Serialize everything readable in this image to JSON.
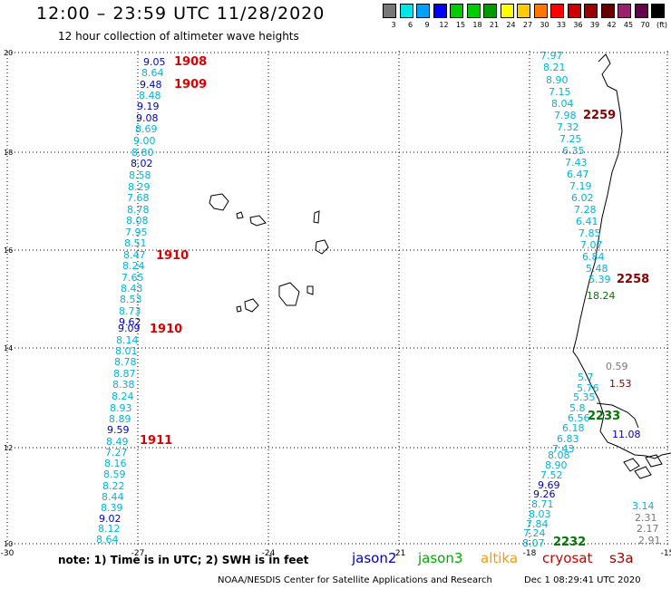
{
  "title": "12:00 – 23:59 UTC 11/28/2020",
  "subtitle": "12 hour collection of altimeter wave heights",
  "legend": {
    "colors": [
      "#777777",
      "#00e5e5",
      "#00a0ff",
      "#0000ff",
      "#00cc00",
      "#00cc00",
      "#009900",
      "#ffff00",
      "#ffcc00",
      "#ff7700",
      "#ff0000",
      "#cc0000",
      "#990000",
      "#660000",
      "#99226c",
      "#66004d",
      "#000000"
    ],
    "ticks": [
      "3",
      "6",
      "9",
      "12",
      "15",
      "18",
      "21",
      "24",
      "27",
      "30",
      "33",
      "36",
      "39",
      "42",
      "45",
      "70",
      "(ft)"
    ]
  },
  "axes": {
    "x_ticks": [
      "-30",
      "-27",
      "-24",
      "-21",
      "-18",
      "-15"
    ],
    "y_ticks": [
      "20",
      "18",
      "16",
      "14",
      "12",
      "10"
    ]
  },
  "track_colors": {
    "c": "#00b4dc",
    "b": "#0000cc",
    "g": "#007700",
    "a": "#777777",
    "m": "#880000",
    "r": "#dd0000"
  },
  "labels": [
    {
      "t": "9.05",
      "c": "b"
    },
    {
      "t": "8.64",
      "c": "c"
    },
    {
      "t": "9.48",
      "c": "b"
    },
    {
      "t": "8.48",
      "c": "c"
    },
    {
      "t": "9.19",
      "c": "b"
    },
    {
      "t": "9.08",
      "c": "b"
    },
    {
      "t": "8.69",
      "c": "c"
    },
    {
      "t": "9.00",
      "c": "c"
    },
    {
      "t": "8.80",
      "c": "c"
    },
    {
      "t": "8.02",
      "c": "b"
    },
    {
      "t": "8.58",
      "c": "c"
    },
    {
      "t": "8.29",
      "c": "c"
    },
    {
      "t": "7.68",
      "c": "c"
    },
    {
      "t": "8.78",
      "c": "c"
    },
    {
      "t": "8.08",
      "c": "c"
    },
    {
      "t": "7.95",
      "c": "c"
    },
    {
      "t": "8.51",
      "c": "c"
    },
    {
      "t": "8.47",
      "c": "c"
    },
    {
      "t": "8.24",
      "c": "c"
    },
    {
      "t": "7.65",
      "c": "c"
    },
    {
      "t": "8.43",
      "c": "c"
    },
    {
      "t": "8.53",
      "c": "c"
    },
    {
      "t": "8.73",
      "c": "c"
    },
    {
      "t": "9.62",
      "c": "b"
    },
    {
      "t": "9.09",
      "c": "b"
    },
    {
      "t": "8.14",
      "c": "c"
    },
    {
      "t": "8.01",
      "c": "c"
    },
    {
      "t": "8.78",
      "c": "c"
    },
    {
      "t": "8.87",
      "c": "c"
    },
    {
      "t": "8.38",
      "c": "c"
    },
    {
      "t": "8.24",
      "c": "c"
    },
    {
      "t": "8.93",
      "c": "c"
    },
    {
      "t": "8.89",
      "c": "c"
    },
    {
      "t": "9.59",
      "c": "b"
    },
    {
      "t": "8.49",
      "c": "c"
    },
    {
      "t": "7.27",
      "c": "c"
    },
    {
      "t": "8.16",
      "c": "c"
    },
    {
      "t": "8.59",
      "c": "c"
    },
    {
      "t": "8.22",
      "c": "c"
    },
    {
      "t": "8.44",
      "c": "c"
    },
    {
      "t": "8.39",
      "c": "c"
    },
    {
      "t": "9.02",
      "c": "b"
    },
    {
      "t": "8.12",
      "c": "c"
    },
    {
      "t": "8.64",
      "c": "c"
    },
    {
      "t": "1908",
      "c": "r"
    },
    {
      "t": "1909",
      "c": "r"
    },
    {
      "t": "1910",
      "c": "r"
    },
    {
      "t": "1910",
      "c": "r"
    },
    {
      "t": "1911",
      "c": "r"
    },
    {
      "t": "7.97",
      "c": "c"
    },
    {
      "t": "8.21",
      "c": "c"
    },
    {
      "t": "8.90",
      "c": "c"
    },
    {
      "t": "7.15",
      "c": "c"
    },
    {
      "t": "8.04",
      "c": "c"
    },
    {
      "t": "7.98",
      "c": "c"
    },
    {
      "t": "7.32",
      "c": "c"
    },
    {
      "t": "7.25",
      "c": "c"
    },
    {
      "t": "6.35",
      "c": "c"
    },
    {
      "t": "7.43",
      "c": "c"
    },
    {
      "t": "6.47",
      "c": "c"
    },
    {
      "t": "7.19",
      "c": "c"
    },
    {
      "t": "6.02",
      "c": "c"
    },
    {
      "t": "7.28",
      "c": "c"
    },
    {
      "t": "6.41",
      "c": "c"
    },
    {
      "t": "7.85",
      "c": "c"
    },
    {
      "t": "7.07",
      "c": "c"
    },
    {
      "t": "6.84",
      "c": "c"
    },
    {
      "t": "5.48",
      "c": "c"
    },
    {
      "t": "5.39",
      "c": "c"
    },
    {
      "t": "18.24",
      "c": "g"
    },
    {
      "t": "2259",
      "c": "m"
    },
    {
      "t": "2258",
      "c": "m"
    },
    {
      "t": "0.59",
      "c": "a"
    },
    {
      "t": "5.7",
      "c": "c"
    },
    {
      "t": "5.76",
      "c": "c"
    },
    {
      "t": "5.35",
      "c": "c"
    },
    {
      "t": "5.8",
      "c": "c"
    },
    {
      "t": "6.56",
      "c": "c"
    },
    {
      "t": "6.18",
      "c": "c"
    },
    {
      "t": "6.83",
      "c": "c"
    },
    {
      "t": "7.43",
      "c": "c"
    },
    {
      "t": "8.08",
      "c": "c"
    },
    {
      "t": "8.90",
      "c": "c"
    },
    {
      "t": "7.52",
      "c": "c"
    },
    {
      "t": "9.69",
      "c": "b"
    },
    {
      "t": "9.26",
      "c": "b"
    },
    {
      "t": "8.71",
      "c": "c"
    },
    {
      "t": "8.03",
      "c": "c"
    },
    {
      "t": "7.84",
      "c": "c"
    },
    {
      "t": "7.24",
      "c": "c"
    },
    {
      "t": "8.07",
      "c": "c"
    },
    {
      "t": "11.08",
      "c": "b"
    },
    {
      "t": "3.14",
      "c": "c"
    },
    {
      "t": "2.31",
      "c": "a"
    },
    {
      "t": "2.17",
      "c": "a"
    },
    {
      "t": "2.91",
      "c": "a"
    },
    {
      "t": "2233",
      "c": "g"
    },
    {
      "t": "2232",
      "c": "g"
    },
    {
      "t": "1.53",
      "c": "m"
    }
  ],
  "note": "note: 1) Time is in UTC; 2) SWH is in feet",
  "satellites": [
    {
      "name": "jason2",
      "color": "#0000cc"
    },
    {
      "name": "jason3",
      "color": "#00aa00"
    },
    {
      "name": "altika",
      "color": "#ff9900"
    },
    {
      "name": "cryosat",
      "color": "#cc0000"
    },
    {
      "name": "s3a",
      "color": "#aa0000"
    }
  ],
  "credit": "NOAA/NESDIS Center for Satellite Applications and Research",
  "stamp": "Dec  1 08:29:41 UTC 2020"
}
